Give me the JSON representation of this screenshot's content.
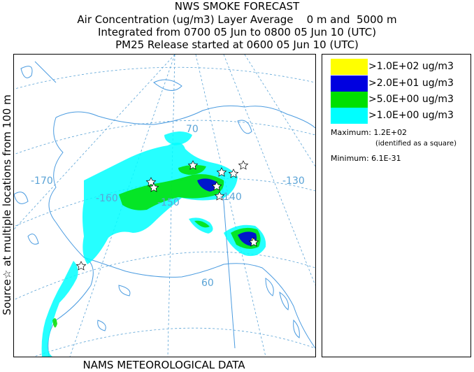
{
  "header": {
    "title": "NWS SMOKE FORECAST",
    "line2": "Air Concentration (ug/m3) Layer Average    0 m and  5000 m",
    "line3": "Integrated from 0700 05 Jun to 0800 05 Jun 10 (UTC)",
    "line4": "PM25 Release started at 0600 05 Jun 10 (UTC)"
  },
  "side_label": "Source☆ at multiple locations   from  100 m",
  "footer": "NAMS METEOROLOGICAL DATA",
  "map": {
    "longitude_labels": [
      "-170",
      "-160",
      "-150",
      "-140",
      "-130"
    ],
    "latitude_labels": [
      "70",
      "60"
    ],
    "colors": {
      "coast": "#4a9be0",
      "grid": "#5aa3d6",
      "level_1": "#00ffff",
      "level_2": "#00e000",
      "level_3": "#0000e0",
      "level_4": "#ffff00"
    }
  },
  "legend": {
    "items": [
      {
        "label": ">1.0E+02 ug/m3",
        "color": "#ffff00"
      },
      {
        "label": ">2.0E+01 ug/m3",
        "color": "#0000e0"
      },
      {
        "label": ">5.0E+00 ug/m3",
        "color": "#00e000"
      },
      {
        "label": ">1.0E+00 ug/m3",
        "color": "#00ffff"
      }
    ],
    "maximum": "Maximum: 1.2E+02",
    "maximum_note": "(identified as a square)",
    "minimum": "Minimum: 6.1E-31"
  }
}
